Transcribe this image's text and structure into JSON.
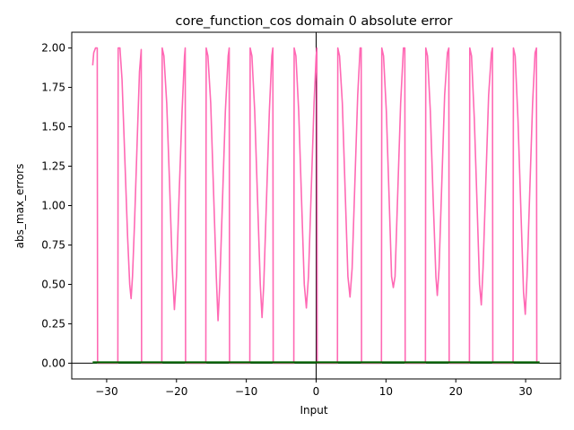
{
  "chart_data": {
    "type": "line",
    "title": "core_function_cos domain 0 absolute error",
    "xlabel": "Input",
    "ylabel": "abs_max_errors",
    "xlim": [
      -35,
      35
    ],
    "ylim": [
      -0.1,
      2.1
    ],
    "xticks": [
      -30,
      -20,
      -10,
      0,
      10,
      20,
      30
    ],
    "xtick_labels": [
      "−30",
      "−20",
      "−10",
      "0",
      "10",
      "20",
      "30"
    ],
    "yticks": [
      0.0,
      0.25,
      0.5,
      0.75,
      1.0,
      1.25,
      1.5,
      1.75,
      2.0
    ],
    "ytick_labels": [
      "0.00",
      "0.25",
      "0.50",
      "0.75",
      "1.00",
      "1.25",
      "1.50",
      "1.75",
      "2.00"
    ],
    "grid": false,
    "reference_lines": {
      "x": 0,
      "y": 0
    },
    "series": [
      {
        "color": "#ff69b4",
        "description": "abs error |cos(x) - approx|, oscillating between 0 and 2; pattern approx. 1 - cos(x) wrapped, drops to 0 near multiples of 2*pi",
        "x_range": [
          -32,
          31.6
        ],
        "points": [
          [
            -32.0,
            1.89
          ],
          [
            -31.85,
            1.97
          ],
          [
            -31.6,
            2.0
          ],
          [
            -31.35,
            2.0
          ],
          [
            -31.3,
            0.0
          ],
          [
            -28.4,
            0.0
          ],
          [
            -28.35,
            2.0
          ],
          [
            -28.1,
            2.0
          ],
          [
            -27.8,
            1.8
          ],
          [
            -27.4,
            1.3
          ],
          [
            -27.0,
            0.8
          ],
          [
            -26.7,
            0.5
          ],
          [
            -26.5,
            0.41
          ],
          [
            -26.3,
            0.55
          ],
          [
            -26.0,
            0.9
          ],
          [
            -25.6,
            1.45
          ],
          [
            -25.3,
            1.85
          ],
          [
            -25.05,
            1.99
          ],
          [
            -25.0,
            0.0
          ],
          [
            -22.1,
            0.0
          ],
          [
            -22.05,
            2.0
          ],
          [
            -21.8,
            1.95
          ],
          [
            -21.4,
            1.65
          ],
          [
            -21.0,
            1.15
          ],
          [
            -20.6,
            0.6
          ],
          [
            -20.3,
            0.34
          ],
          [
            -20.0,
            0.55
          ],
          [
            -19.6,
            1.1
          ],
          [
            -19.2,
            1.6
          ],
          [
            -18.85,
            1.95
          ],
          [
            -18.75,
            2.0
          ],
          [
            -18.7,
            0.0
          ],
          [
            -15.8,
            0.0
          ],
          [
            -15.75,
            2.0
          ],
          [
            -15.5,
            1.95
          ],
          [
            -15.1,
            1.65
          ],
          [
            -14.7,
            1.1
          ],
          [
            -14.3,
            0.55
          ],
          [
            -14.05,
            0.27
          ],
          [
            -13.8,
            0.5
          ],
          [
            -13.4,
            1.05
          ],
          [
            -13.0,
            1.6
          ],
          [
            -12.6,
            1.95
          ],
          [
            -12.45,
            2.0
          ],
          [
            -12.4,
            0.0
          ],
          [
            -9.5,
            0.0
          ],
          [
            -9.45,
            2.0
          ],
          [
            -9.2,
            1.95
          ],
          [
            -8.8,
            1.6
          ],
          [
            -8.4,
            1.05
          ],
          [
            -8.0,
            0.5
          ],
          [
            -7.75,
            0.29
          ],
          [
            -7.5,
            0.5
          ],
          [
            -7.1,
            1.05
          ],
          [
            -6.7,
            1.6
          ],
          [
            -6.35,
            1.95
          ],
          [
            -6.2,
            2.0
          ],
          [
            -6.15,
            0.0
          ],
          [
            -3.2,
            0.0
          ],
          [
            -3.15,
            2.0
          ],
          [
            -2.9,
            1.95
          ],
          [
            -2.5,
            1.6
          ],
          [
            -2.1,
            1.05
          ],
          [
            -1.7,
            0.5
          ],
          [
            -1.4,
            0.35
          ],
          [
            -1.1,
            0.55
          ],
          [
            -0.7,
            1.1
          ],
          [
            -0.3,
            1.65
          ],
          [
            0.0,
            1.95
          ],
          [
            0.1,
            2.0
          ],
          [
            0.15,
            0.0
          ],
          [
            3.05,
            0.0
          ],
          [
            3.1,
            2.0
          ],
          [
            3.35,
            1.95
          ],
          [
            3.75,
            1.65
          ],
          [
            4.15,
            1.1
          ],
          [
            4.55,
            0.55
          ],
          [
            4.85,
            0.42
          ],
          [
            5.15,
            0.6
          ],
          [
            5.55,
            1.15
          ],
          [
            5.95,
            1.7
          ],
          [
            6.3,
            2.0
          ],
          [
            6.45,
            2.0
          ],
          [
            6.5,
            0.0
          ],
          [
            9.35,
            0.0
          ],
          [
            9.4,
            2.0
          ],
          [
            9.65,
            1.95
          ],
          [
            10.05,
            1.6
          ],
          [
            10.45,
            1.05
          ],
          [
            10.8,
            0.55
          ],
          [
            11.05,
            0.48
          ],
          [
            11.3,
            0.55
          ],
          [
            11.7,
            1.1
          ],
          [
            12.1,
            1.65
          ],
          [
            12.5,
            2.0
          ],
          [
            12.7,
            2.0
          ],
          [
            12.75,
            0.0
          ],
          [
            15.65,
            0.0
          ],
          [
            15.7,
            2.0
          ],
          [
            15.95,
            1.95
          ],
          [
            16.35,
            1.6
          ],
          [
            16.75,
            1.05
          ],
          [
            17.15,
            0.55
          ],
          [
            17.35,
            0.43
          ],
          [
            17.6,
            0.6
          ],
          [
            18.0,
            1.15
          ],
          [
            18.4,
            1.7
          ],
          [
            18.8,
            1.97
          ],
          [
            19.0,
            2.0
          ],
          [
            19.05,
            0.0
          ],
          [
            21.95,
            0.0
          ],
          [
            22.0,
            2.0
          ],
          [
            22.25,
            1.95
          ],
          [
            22.65,
            1.55
          ],
          [
            23.05,
            1.0
          ],
          [
            23.4,
            0.5
          ],
          [
            23.65,
            0.37
          ],
          [
            23.9,
            0.6
          ],
          [
            24.3,
            1.15
          ],
          [
            24.7,
            1.7
          ],
          [
            25.1,
            1.97
          ],
          [
            25.25,
            2.0
          ],
          [
            25.3,
            0.0
          ],
          [
            28.2,
            0.0
          ],
          [
            28.25,
            2.0
          ],
          [
            28.5,
            1.95
          ],
          [
            28.9,
            1.55
          ],
          [
            29.3,
            1.0
          ],
          [
            29.7,
            0.45
          ],
          [
            29.95,
            0.31
          ],
          [
            30.2,
            0.55
          ],
          [
            30.6,
            1.1
          ],
          [
            31.0,
            1.65
          ],
          [
            31.35,
            1.97
          ],
          [
            31.55,
            2.0
          ],
          [
            31.6,
            0.0
          ]
        ]
      },
      {
        "color": "#006400",
        "description": "flat series at zero",
        "points": [
          [
            -32.0,
            0.005
          ],
          [
            32.0,
            0.005
          ]
        ]
      }
    ]
  }
}
